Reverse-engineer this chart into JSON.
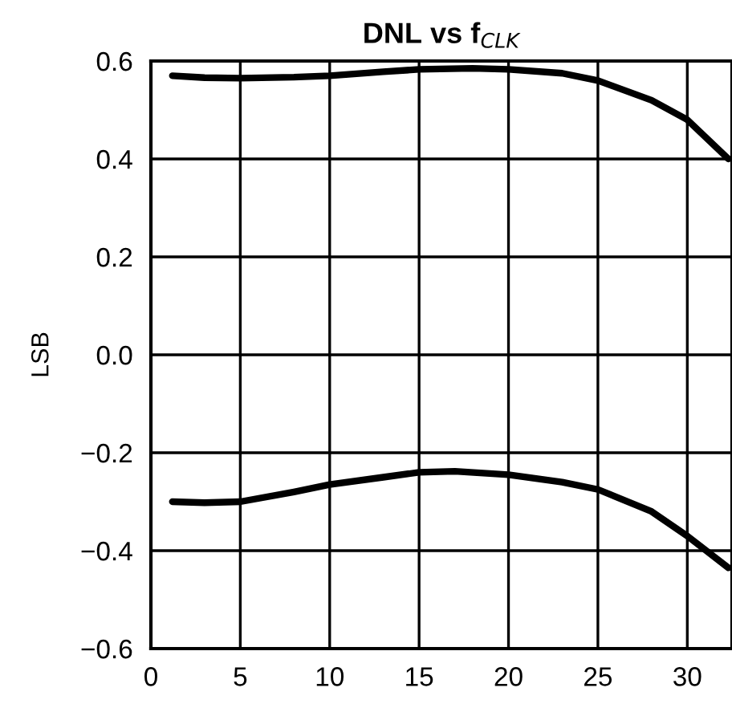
{
  "chart_data": {
    "type": "line",
    "title": "DNL vs f$_{CLK}$",
    "ylabel": "LSB",
    "xlim": [
      0,
      32.5
    ],
    "ylim": [
      -0.6,
      0.6
    ],
    "xticks": [
      0,
      5,
      10,
      15,
      20,
      25,
      30
    ],
    "yticks": [
      {
        "value": -0.6,
        "label": "−0.6"
      },
      {
        "value": -0.4,
        "label": "−0.4"
      },
      {
        "value": -0.2,
        "label": "−0.2"
      },
      {
        "value": 0,
        "label": "0.0"
      },
      {
        "value": 0.2,
        "label": "0.2"
      },
      {
        "value": 0.4,
        "label": "0.4"
      },
      {
        "value": 0.6,
        "label": "0.6"
      }
    ],
    "grid": true,
    "series": [
      {
        "color": "#000000",
        "x": [
          1.2,
          3,
          5,
          8,
          10,
          13,
          15,
          18,
          20,
          23,
          25,
          28,
          30,
          32.3
        ],
        "values": [
          0.57,
          0.566,
          0.565,
          0.567,
          0.57,
          0.578,
          0.583,
          0.585,
          0.583,
          0.575,
          0.56,
          0.52,
          0.48,
          0.4
        ]
      },
      {
        "color": "#000000",
        "x": [
          1.2,
          3,
          5,
          8,
          10,
          13,
          15,
          17,
          20,
          23,
          25,
          28,
          30,
          32.3
        ],
        "values": [
          -0.3,
          -0.302,
          -0.3,
          -0.28,
          -0.265,
          -0.25,
          -0.24,
          -0.238,
          -0.245,
          -0.26,
          -0.275,
          -0.32,
          -0.37,
          -0.435
        ]
      }
    ]
  }
}
